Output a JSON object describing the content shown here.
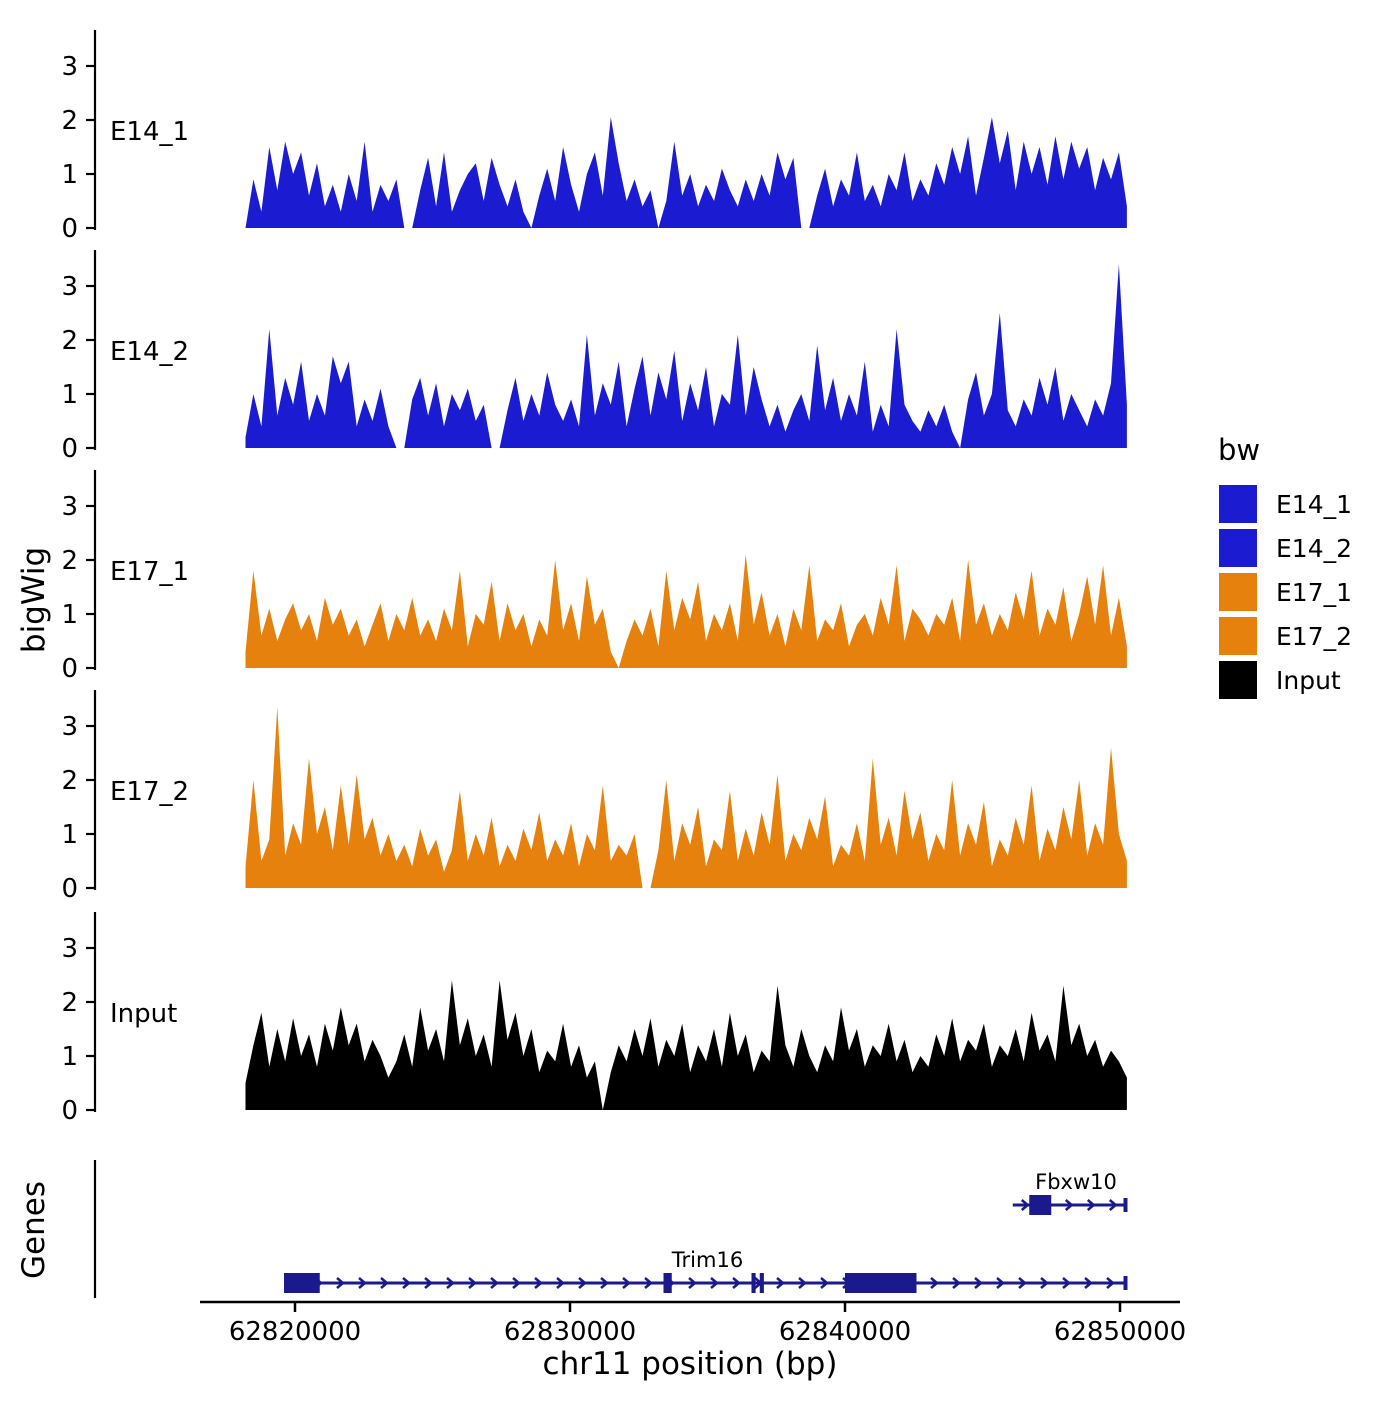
{
  "figure": {
    "background": "#ffffff"
  },
  "axis": {
    "y_label": "bigWig",
    "genes_label": "Genes",
    "x_label": "chr11 position (bp)",
    "x_tick_labels": [
      "62820000",
      "62830000",
      "62840000",
      "62850000"
    ],
    "y_ticks": [
      0,
      1,
      2,
      3
    ]
  },
  "legend": {
    "title": "bw",
    "entries": [
      {
        "label": "E14_1",
        "color": "#1b1bd1"
      },
      {
        "label": "E14_2",
        "color": "#1b1bd1"
      },
      {
        "label": "E17_1",
        "color": "#E5810C"
      },
      {
        "label": "E17_2",
        "color": "#E5810C"
      },
      {
        "label": "Input",
        "color": "#000000"
      }
    ]
  },
  "chart_data": {
    "type": "area",
    "title": "",
    "xlabel": "chr11 position (bp)",
    "ylabel": "bigWig",
    "x_axis_ticks_bp": [
      62820000,
      62830000,
      62840000,
      62850000
    ],
    "x_range_bp": [
      62818200,
      62850250
    ],
    "ylim": [
      0,
      3.5
    ],
    "y_ticks": [
      0,
      1,
      2,
      3
    ],
    "grid": false,
    "legend_position": "right",
    "tracks": [
      {
        "name": "E14_1",
        "color": "#1b1bd1",
        "values": [
          0.0,
          0.9,
          0.3,
          1.5,
          0.7,
          1.6,
          1.0,
          1.4,
          0.6,
          1.2,
          0.4,
          0.8,
          0.3,
          1.0,
          0.5,
          1.6,
          0.3,
          0.8,
          0.5,
          0.9,
          0.0,
          0.0,
          0.7,
          1.3,
          0.4,
          1.4,
          0.3,
          0.7,
          1.0,
          1.2,
          0.5,
          1.3,
          0.8,
          0.4,
          0.9,
          0.3,
          0.0,
          0.6,
          1.1,
          0.5,
          1.5,
          0.8,
          0.3,
          1.0,
          1.4,
          0.6,
          2.05,
          1.2,
          0.5,
          0.9,
          0.4,
          0.7,
          0.0,
          0.5,
          1.6,
          0.6,
          1.0,
          0.4,
          0.8,
          0.5,
          1.1,
          0.7,
          0.4,
          0.9,
          0.5,
          1.0,
          0.6,
          1.4,
          0.9,
          1.3,
          0.0,
          0.0,
          0.6,
          1.1,
          0.4,
          0.9,
          0.6,
          1.4,
          0.5,
          0.8,
          0.4,
          1.0,
          0.7,
          1.4,
          0.5,
          0.9,
          0.6,
          1.2,
          0.8,
          1.5,
          1.0,
          1.7,
          0.6,
          1.3,
          2.05,
          1.2,
          1.8,
          0.7,
          1.6,
          1.0,
          1.5,
          0.8,
          1.7,
          0.9,
          1.6,
          1.1,
          1.5,
          0.7,
          1.3,
          0.9,
          1.4,
          0.4
        ]
      },
      {
        "name": "E14_2",
        "color": "#1b1bd1",
        "values": [
          0.2,
          1.0,
          0.4,
          2.2,
          0.6,
          1.3,
          0.8,
          1.6,
          0.5,
          1.0,
          0.6,
          1.7,
          1.2,
          1.6,
          0.4,
          0.9,
          0.5,
          1.1,
          0.4,
          0.0,
          0.0,
          0.9,
          1.3,
          0.6,
          1.2,
          0.4,
          1.0,
          0.7,
          1.1,
          0.5,
          0.8,
          0.0,
          0.0,
          0.7,
          1.3,
          0.5,
          1.0,
          0.6,
          1.4,
          0.8,
          0.5,
          0.9,
          0.4,
          2.1,
          0.6,
          1.2,
          0.8,
          1.6,
          0.4,
          1.1,
          1.7,
          0.6,
          1.4,
          0.9,
          1.8,
          0.5,
          1.2,
          0.7,
          1.5,
          0.4,
          1.0,
          0.8,
          2.1,
          0.6,
          1.5,
          0.9,
          0.4,
          0.8,
          0.3,
          0.7,
          1.0,
          0.5,
          1.9,
          0.7,
          1.3,
          0.5,
          1.0,
          0.6,
          1.6,
          0.3,
          0.8,
          0.4,
          2.2,
          0.8,
          0.5,
          0.3,
          0.7,
          0.4,
          0.8,
          0.3,
          0.0,
          0.9,
          1.4,
          0.6,
          1.0,
          2.5,
          0.7,
          0.4,
          0.9,
          0.6,
          1.3,
          0.8,
          1.5,
          0.5,
          1.0,
          0.7,
          0.4,
          0.9,
          0.6,
          1.2,
          3.4,
          0.8
        ]
      },
      {
        "name": "E17_1",
        "color": "#E5810C",
        "values": [
          0.3,
          1.8,
          0.6,
          1.1,
          0.5,
          0.9,
          1.2,
          0.7,
          1.0,
          0.5,
          1.3,
          0.8,
          1.1,
          0.6,
          0.9,
          0.4,
          0.8,
          1.2,
          0.5,
          1.0,
          0.7,
          1.3,
          0.6,
          0.9,
          0.5,
          1.1,
          0.7,
          1.8,
          0.4,
          1.0,
          0.8,
          1.6,
          0.5,
          1.2,
          0.7,
          1.0,
          0.4,
          0.9,
          0.6,
          2.0,
          0.7,
          1.2,
          0.5,
          1.7,
          0.8,
          1.1,
          0.3,
          0.0,
          0.5,
          0.9,
          0.6,
          1.1,
          0.4,
          1.8,
          0.7,
          1.3,
          0.9,
          1.6,
          0.5,
          1.0,
          0.7,
          1.2,
          0.5,
          2.1,
          0.8,
          1.4,
          0.6,
          1.0,
          0.4,
          1.1,
          0.7,
          1.9,
          0.5,
          0.9,
          0.7,
          1.2,
          0.4,
          0.8,
          1.0,
          0.6,
          1.3,
          0.8,
          1.9,
          0.5,
          1.1,
          0.9,
          0.6,
          1.0,
          0.8,
          1.3,
          0.5,
          2.0,
          0.8,
          1.2,
          0.6,
          1.0,
          0.7,
          1.4,
          0.9,
          1.8,
          0.6,
          1.1,
          0.8,
          1.5,
          0.5,
          1.0,
          1.7,
          0.8,
          1.9,
          0.6,
          1.3,
          0.4
        ]
      },
      {
        "name": "E17_2",
        "color": "#E5810C",
        "values": [
          0.4,
          2.0,
          0.5,
          0.9,
          3.35,
          0.6,
          1.2,
          0.8,
          2.4,
          1.0,
          1.5,
          0.7,
          1.9,
          0.8,
          2.1,
          0.9,
          1.3,
          0.6,
          1.0,
          0.5,
          0.8,
          0.4,
          1.1,
          0.6,
          0.9,
          0.3,
          0.7,
          1.8,
          0.5,
          1.0,
          0.6,
          1.3,
          0.4,
          0.8,
          0.5,
          1.1,
          0.7,
          1.4,
          0.5,
          0.9,
          0.6,
          1.2,
          0.4,
          1.0,
          0.7,
          1.9,
          0.5,
          0.8,
          0.6,
          1.0,
          0.0,
          0.0,
          0.7,
          2.0,
          0.5,
          1.2,
          0.8,
          1.5,
          0.4,
          0.9,
          0.7,
          1.8,
          0.5,
          1.1,
          0.6,
          1.4,
          0.8,
          2.1,
          0.5,
          1.0,
          0.7,
          1.3,
          0.9,
          1.7,
          0.4,
          0.8,
          0.6,
          1.2,
          0.5,
          2.4,
          0.8,
          1.3,
          0.6,
          1.8,
          0.9,
          1.4,
          0.5,
          1.0,
          0.7,
          2.0,
          0.6,
          1.2,
          0.8,
          1.6,
          0.4,
          0.9,
          0.6,
          1.3,
          0.8,
          1.9,
          0.5,
          1.1,
          0.7,
          1.5,
          0.9,
          2.0,
          0.6,
          1.2,
          0.8,
          2.6,
          1.0,
          0.5
        ]
      },
      {
        "name": "Input",
        "color": "#000000",
        "values": [
          0.5,
          1.2,
          1.8,
          0.8,
          1.5,
          0.9,
          1.7,
          1.0,
          1.4,
          0.8,
          1.6,
          1.1,
          1.9,
          1.2,
          1.6,
          0.9,
          1.3,
          1.0,
          0.6,
          0.9,
          1.4,
          0.8,
          1.9,
          1.1,
          1.5,
          0.9,
          2.4,
          1.2,
          1.7,
          1.0,
          1.4,
          0.8,
          2.4,
          1.3,
          1.8,
          1.0,
          1.5,
          0.7,
          1.1,
          0.9,
          1.6,
          0.8,
          1.2,
          0.6,
          0.9,
          0.0,
          0.7,
          1.2,
          0.9,
          1.5,
          1.0,
          1.7,
          0.8,
          1.3,
          1.0,
          1.6,
          0.7,
          1.2,
          0.9,
          1.5,
          0.8,
          1.8,
          1.0,
          1.4,
          0.7,
          1.1,
          0.9,
          2.3,
          1.2,
          0.8,
          1.5,
          1.0,
          0.7,
          1.2,
          0.9,
          1.9,
          1.1,
          1.5,
          0.8,
          1.2,
          1.0,
          1.6,
          0.9,
          1.3,
          0.7,
          1.0,
          0.8,
          1.4,
          1.0,
          1.7,
          0.9,
          1.3,
          1.1,
          1.6,
          0.8,
          1.2,
          1.0,
          1.5,
          0.9,
          1.8,
          1.1,
          1.4,
          0.9,
          2.3,
          1.2,
          1.6,
          1.0,
          1.3,
          0.8,
          1.1,
          0.9,
          0.6
        ]
      }
    ],
    "genes": {
      "track_label": "Genes",
      "color": "#1a1a8c",
      "items": [
        {
          "name": "Fbxw10",
          "start": 62846100,
          "end": 62850200,
          "strand": "+",
          "row": 0,
          "exons": [
            [
              62846700,
              62847500
            ]
          ],
          "label_bp": 62848400
        },
        {
          "name": "Trim16",
          "start": 62819600,
          "end": 62850200,
          "strand": "+",
          "row": 1,
          "exons": [
            [
              62819600,
              62820900
            ],
            [
              62833400,
              62833700
            ],
            [
              62836600,
              62836750
            ],
            [
              62836900,
              62837050
            ],
            [
              62840000,
              62842600
            ]
          ],
          "label_bp": 62835000
        }
      ]
    }
  }
}
